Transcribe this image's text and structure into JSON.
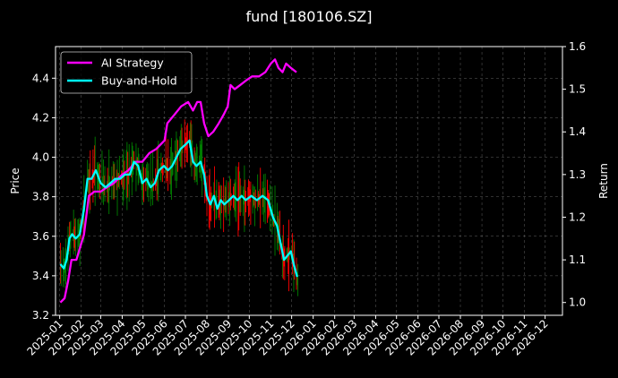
{
  "chart_data": {
    "type": "line",
    "title": "fund [180106.SZ]",
    "ylabel": "Price",
    "y2label": "Return",
    "ylim": [
      3.2,
      4.56
    ],
    "y2lim": [
      0.97,
      1.6
    ],
    "xlim": [
      "2024-12-26",
      "2026-12-26"
    ],
    "yticks": [
      3.2,
      3.4,
      3.6,
      3.8,
      4.0,
      4.2,
      4.4
    ],
    "y2ticks": [
      1.0,
      1.1,
      1.2,
      1.3,
      1.4,
      1.5,
      1.6
    ],
    "xticks": [
      "2025-01",
      "2025-02",
      "2025-03",
      "2025-04",
      "2025-05",
      "2025-06",
      "2025-07",
      "2025-08",
      "2025-09",
      "2025-10",
      "2025-11",
      "2025-12",
      "2026-01",
      "2026-02",
      "2026-03",
      "2026-04",
      "2026-05",
      "2026-06",
      "2026-07",
      "2026-08",
      "2026-09",
      "2026-10",
      "2026-11",
      "2026-12"
    ],
    "grid": true,
    "legend_position": "upper-left",
    "colors": {
      "ai_strategy": "#ff00ff",
      "buy_and_hold": "#00ffff",
      "up_candle": "#008000",
      "down_candle": "#ff0000"
    },
    "series": [
      {
        "name": "AI Strategy",
        "axis": "right",
        "points": [
          [
            "2025-01-02",
            1.0
          ],
          [
            "2025-01-08",
            1.01
          ],
          [
            "2025-01-13",
            1.05
          ],
          [
            "2025-01-18",
            1.1
          ],
          [
            "2025-01-25",
            1.1
          ],
          [
            "2025-02-05",
            1.16
          ],
          [
            "2025-02-12",
            1.25
          ],
          [
            "2025-02-20",
            1.26
          ],
          [
            "2025-03-01",
            1.26
          ],
          [
            "2025-03-10",
            1.27
          ],
          [
            "2025-03-20",
            1.28
          ],
          [
            "2025-04-01",
            1.3
          ],
          [
            "2025-04-10",
            1.31
          ],
          [
            "2025-04-20",
            1.33
          ],
          [
            "2025-04-30",
            1.33
          ],
          [
            "2025-05-10",
            1.35
          ],
          [
            "2025-05-20",
            1.36
          ],
          [
            "2025-06-01",
            1.38
          ],
          [
            "2025-06-05",
            1.42
          ],
          [
            "2025-06-15",
            1.44
          ],
          [
            "2025-06-25",
            1.46
          ],
          [
            "2025-07-05",
            1.47
          ],
          [
            "2025-07-12",
            1.45
          ],
          [
            "2025-07-18",
            1.47
          ],
          [
            "2025-07-23",
            1.47
          ],
          [
            "2025-07-28",
            1.42
          ],
          [
            "2025-08-03",
            1.39
          ],
          [
            "2025-08-10",
            1.4
          ],
          [
            "2025-08-18",
            1.42
          ],
          [
            "2025-08-25",
            1.44
          ],
          [
            "2025-08-31",
            1.46
          ],
          [
            "2025-09-04",
            1.51
          ],
          [
            "2025-09-10",
            1.5
          ],
          [
            "2025-09-18",
            1.51
          ],
          [
            "2025-09-26",
            1.52
          ],
          [
            "2025-10-05",
            1.53
          ],
          [
            "2025-10-15",
            1.53
          ],
          [
            "2025-10-24",
            1.54
          ],
          [
            "2025-11-01",
            1.56
          ],
          [
            "2025-11-07",
            1.57
          ],
          [
            "2025-11-12",
            1.55
          ],
          [
            "2025-11-18",
            1.54
          ],
          [
            "2025-11-23",
            1.56
          ],
          [
            "2025-11-30",
            1.55
          ],
          [
            "2025-12-08",
            1.54
          ]
        ]
      },
      {
        "name": "Buy-and-Hold",
        "axis": "right",
        "points": [
          [
            "2025-01-02",
            1.09
          ],
          [
            "2025-01-07",
            1.08
          ],
          [
            "2025-01-11",
            1.1
          ],
          [
            "2025-01-15",
            1.15
          ],
          [
            "2025-01-19",
            1.16
          ],
          [
            "2025-01-24",
            1.15
          ],
          [
            "2025-01-30",
            1.16
          ],
          [
            "2025-02-05",
            1.22
          ],
          [
            "2025-02-10",
            1.29
          ],
          [
            "2025-02-16",
            1.29
          ],
          [
            "2025-02-22",
            1.31
          ],
          [
            "2025-03-01",
            1.28
          ],
          [
            "2025-03-08",
            1.27
          ],
          [
            "2025-03-15",
            1.28
          ],
          [
            "2025-03-22",
            1.29
          ],
          [
            "2025-03-29",
            1.29
          ],
          [
            "2025-04-05",
            1.3
          ],
          [
            "2025-04-12",
            1.3
          ],
          [
            "2025-04-18",
            1.33
          ],
          [
            "2025-04-24",
            1.32
          ],
          [
            "2025-04-30",
            1.28
          ],
          [
            "2025-05-06",
            1.29
          ],
          [
            "2025-05-12",
            1.27
          ],
          [
            "2025-05-18",
            1.28
          ],
          [
            "2025-05-24",
            1.31
          ],
          [
            "2025-05-31",
            1.32
          ],
          [
            "2025-06-06",
            1.31
          ],
          [
            "2025-06-12",
            1.32
          ],
          [
            "2025-06-18",
            1.34
          ],
          [
            "2025-06-24",
            1.36
          ],
          [
            "2025-07-01",
            1.37
          ],
          [
            "2025-07-07",
            1.38
          ],
          [
            "2025-07-12",
            1.33
          ],
          [
            "2025-07-17",
            1.32
          ],
          [
            "2025-07-23",
            1.33
          ],
          [
            "2025-07-28",
            1.3
          ],
          [
            "2025-08-01",
            1.25
          ],
          [
            "2025-08-06",
            1.23
          ],
          [
            "2025-08-11",
            1.25
          ],
          [
            "2025-08-16",
            1.22
          ],
          [
            "2025-08-21",
            1.24
          ],
          [
            "2025-08-26",
            1.23
          ],
          [
            "2025-09-02",
            1.24
          ],
          [
            "2025-09-08",
            1.25
          ],
          [
            "2025-09-14",
            1.24
          ],
          [
            "2025-09-20",
            1.25
          ],
          [
            "2025-09-26",
            1.24
          ],
          [
            "2025-10-04",
            1.25
          ],
          [
            "2025-10-12",
            1.24
          ],
          [
            "2025-10-20",
            1.25
          ],
          [
            "2025-10-28",
            1.24
          ],
          [
            "2025-11-04",
            1.2
          ],
          [
            "2025-11-10",
            1.18
          ],
          [
            "2025-11-15",
            1.14
          ],
          [
            "2025-11-20",
            1.1
          ],
          [
            "2025-11-25",
            1.11
          ],
          [
            "2025-11-30",
            1.12
          ],
          [
            "2025-12-04",
            1.09
          ],
          [
            "2025-12-09",
            1.06
          ]
        ]
      }
    ]
  }
}
